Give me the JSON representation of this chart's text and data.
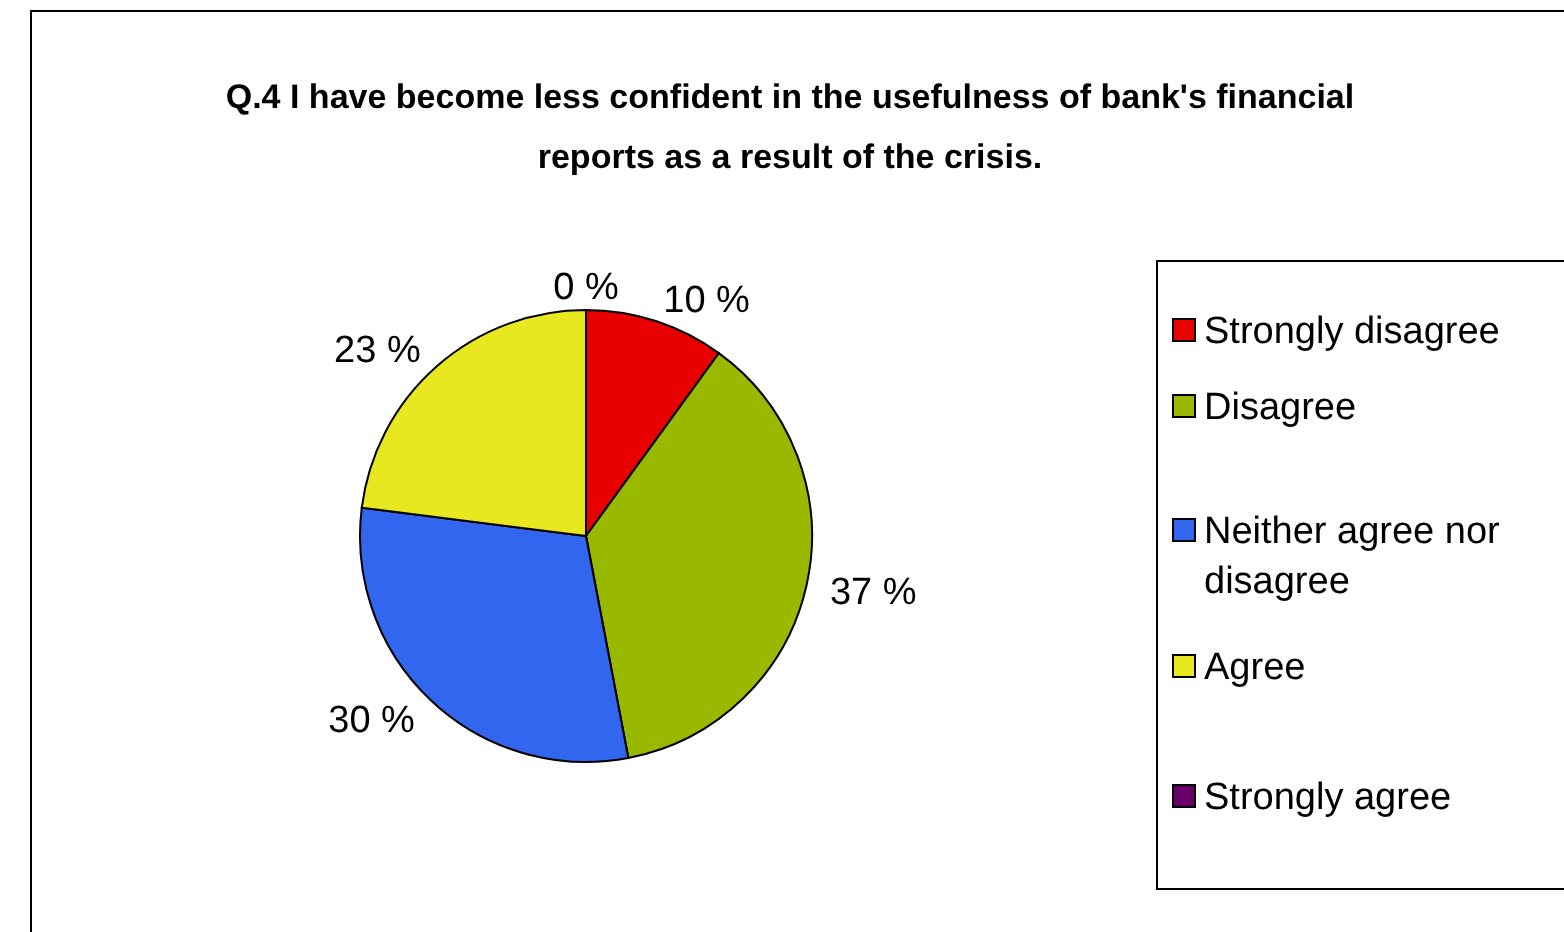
{
  "chart_data": {
    "type": "pie",
    "title": "Q.4 I have become less confident in the usefulness of bank's financial reports as a result of the crisis.",
    "categories": [
      "Strongly disagree",
      "Disagree",
      "Neither agree nor disagree",
      "Agree",
      "Strongly agree"
    ],
    "values": [
      10,
      37,
      30,
      23,
      0
    ],
    "value_labels": [
      "10 %",
      "37 %",
      "30 %",
      "23 %",
      "0 %"
    ],
    "colors": [
      "#e80000",
      "#99b800",
      "#3366ee",
      "#e8e820",
      "#660066"
    ],
    "legend": "right"
  }
}
